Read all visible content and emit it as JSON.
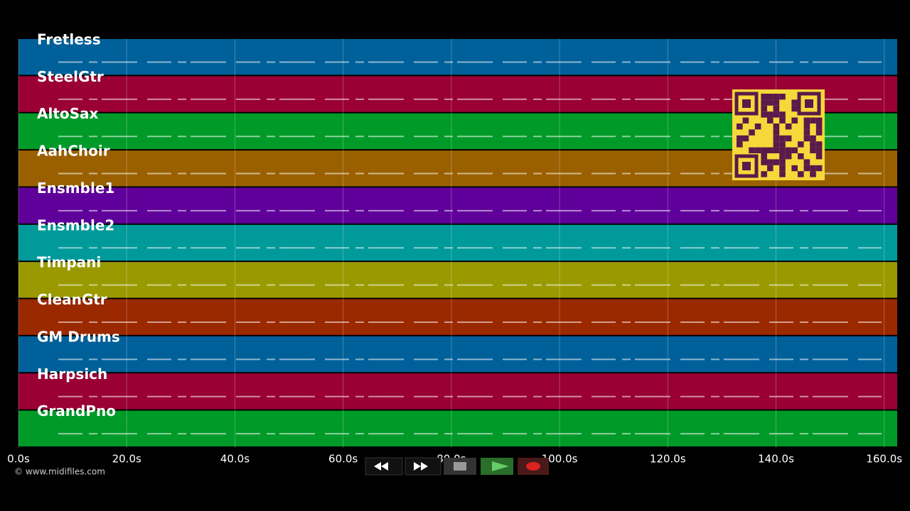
{
  "tracks": [
    {
      "name": "Fretless",
      "color": "#00609a"
    },
    {
      "name": "SteelGtr",
      "color": "#9a0033"
    },
    {
      "name": "AltoSax",
      "color": "#009a29"
    },
    {
      "name": "AahChoir",
      "color": "#9a6000"
    },
    {
      "name": "Ensmble1",
      "color": "#60009a"
    },
    {
      "name": "Ensmble2",
      "color": "#009a9a"
    },
    {
      "name": "Timpani",
      "color": "#9a9a00"
    },
    {
      "name": "CleanGtr",
      "color": "#9a2900"
    },
    {
      "name": "GM Drums",
      "color": "#00609a"
    },
    {
      "name": "Harpsich",
      "color": "#9a0033"
    },
    {
      "name": "GrandPno",
      "color": "#009a29"
    }
  ],
  "x_axis": {
    "xlim": [
      0,
      162.4
    ],
    "ticks": [
      {
        "value": 0,
        "label": "0.0s"
      },
      {
        "value": 20,
        "label": "20.0s"
      },
      {
        "value": 40,
        "label": "40.0s"
      },
      {
        "value": 60,
        "label": "60.0s"
      },
      {
        "value": 80,
        "label": "80.0s"
      },
      {
        "value": 100,
        "label": "100.0s"
      },
      {
        "value": 120,
        "label": "120.0s"
      },
      {
        "value": 140,
        "label": "140.0s"
      },
      {
        "value": 160,
        "label": "160.0s"
      }
    ]
  },
  "footer": "© www.midifiles.com"
}
